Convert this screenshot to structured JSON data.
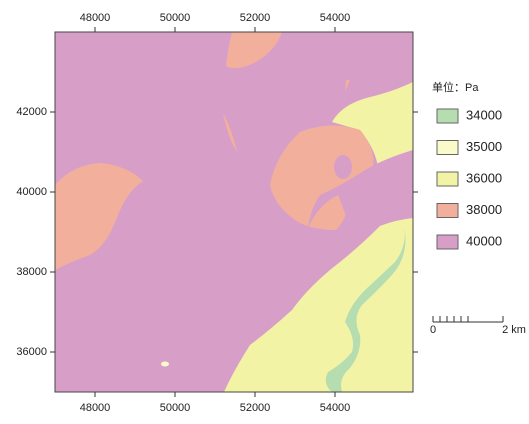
{
  "map": {
    "xlim": [
      47000,
      55950
    ],
    "ylim": [
      35000,
      44000
    ],
    "xticks": [
      48000,
      50000,
      52000,
      54000
    ],
    "yticks": [
      36000,
      38000,
      40000,
      42000
    ]
  },
  "legend": {
    "title": "单位：Pa",
    "items": [
      {
        "label": "34000",
        "color": "#b6ddb0"
      },
      {
        "label": "35000",
        "color": "#fafacb"
      },
      {
        "label": "36000",
        "color": "#f3f3a6"
      },
      {
        "label": "38000",
        "color": "#f2b09c"
      },
      {
        "label": "40000",
        "color": "#d79fc7"
      }
    ]
  },
  "scale_bar": {
    "labels": [
      "0",
      "2 km"
    ]
  }
}
